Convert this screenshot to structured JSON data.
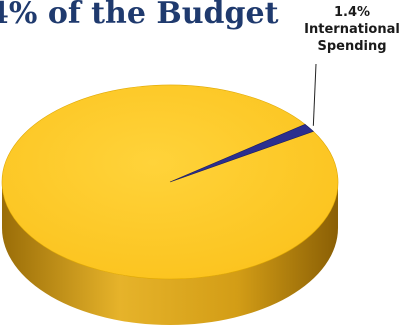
{
  "chart_data": {
    "type": "pie",
    "title": "4% of the Budget",
    "slices": [
      {
        "label": "",
        "value": 98.6,
        "color": "#ffc82a",
        "side_color": "#d9a21a"
      },
      {
        "label": "International Spending",
        "value": 1.4,
        "display_value": "1.4%",
        "color": "#2b2f8f",
        "side_color": "#1c1e63"
      }
    ],
    "label_lines": [
      "1.4%",
      "International",
      "Spending"
    ],
    "three_d": true,
    "legend": "none"
  }
}
